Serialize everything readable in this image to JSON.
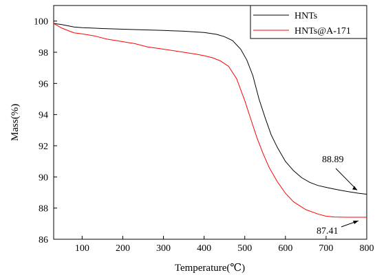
{
  "chart_data": {
    "type": "line",
    "xlabel": "Temperature(℃)",
    "ylabel": "Mass(%)",
    "xlim": [
      30,
      800
    ],
    "ylim": [
      86,
      101
    ],
    "x_ticks": [
      100,
      200,
      300,
      400,
      500,
      600,
      700,
      800
    ],
    "y_ticks": [
      86,
      88,
      90,
      92,
      94,
      96,
      98,
      100
    ],
    "legend_position": "top-right",
    "grid": false,
    "series": [
      {
        "name": "HNTs",
        "color": "#000000",
        "points": [
          [
            30,
            99.85
          ],
          [
            50,
            99.78
          ],
          [
            80,
            99.62
          ],
          [
            100,
            99.58
          ],
          [
            150,
            99.52
          ],
          [
            200,
            99.48
          ],
          [
            250,
            99.44
          ],
          [
            300,
            99.4
          ],
          [
            350,
            99.35
          ],
          [
            400,
            99.27
          ],
          [
            430,
            99.15
          ],
          [
            450,
            99.0
          ],
          [
            470,
            98.75
          ],
          [
            490,
            98.2
          ],
          [
            505,
            97.5
          ],
          [
            520,
            96.5
          ],
          [
            535,
            95.0
          ],
          [
            550,
            93.8
          ],
          [
            565,
            92.7
          ],
          [
            580,
            91.9
          ],
          [
            600,
            91.0
          ],
          [
            620,
            90.4
          ],
          [
            640,
            89.95
          ],
          [
            660,
            89.65
          ],
          [
            680,
            89.45
          ],
          [
            700,
            89.33
          ],
          [
            720,
            89.22
          ],
          [
            740,
            89.12
          ],
          [
            760,
            89.03
          ],
          [
            780,
            88.95
          ],
          [
            800,
            88.89
          ]
        ]
      },
      {
        "name": "HNTs@A-171",
        "color": "#ff0000",
        "points": [
          [
            30,
            99.85
          ],
          [
            50,
            99.55
          ],
          [
            80,
            99.25
          ],
          [
            100,
            99.18
          ],
          [
            130,
            99.05
          ],
          [
            160,
            98.85
          ],
          [
            200,
            98.68
          ],
          [
            230,
            98.55
          ],
          [
            260,
            98.35
          ],
          [
            300,
            98.2
          ],
          [
            350,
            98.0
          ],
          [
            380,
            97.88
          ],
          [
            400,
            97.78
          ],
          [
            420,
            97.65
          ],
          [
            440,
            97.45
          ],
          [
            460,
            97.1
          ],
          [
            480,
            96.3
          ],
          [
            500,
            94.9
          ],
          [
            515,
            93.7
          ],
          [
            530,
            92.5
          ],
          [
            545,
            91.5
          ],
          [
            560,
            90.6
          ],
          [
            580,
            89.7
          ],
          [
            600,
            88.95
          ],
          [
            620,
            88.4
          ],
          [
            650,
            87.9
          ],
          [
            680,
            87.62
          ],
          [
            700,
            87.48
          ],
          [
            720,
            87.43
          ],
          [
            750,
            87.41
          ],
          [
            800,
            87.41
          ]
        ]
      }
    ],
    "annotations": [
      {
        "text": "88.89",
        "x": 800,
        "y": 88.89
      },
      {
        "text": "87.41",
        "x": 800,
        "y": 87.41
      }
    ]
  }
}
